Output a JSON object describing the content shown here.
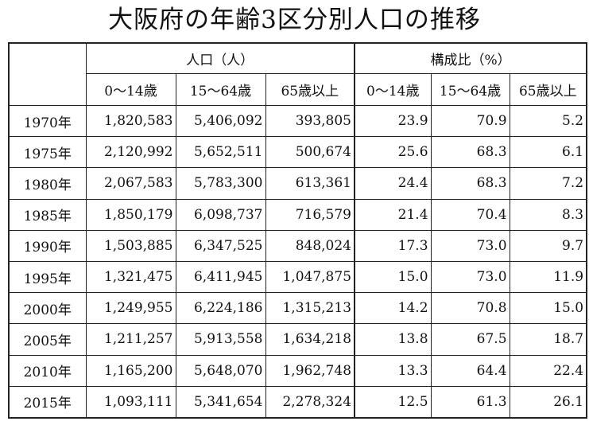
{
  "title": "大阪府の年齢3区分別人口の推移",
  "table": {
    "group_headers": [
      "人口（人）",
      "構成比（%）"
    ],
    "sub_headers": [
      "0〜14歳",
      "15〜64歳",
      "65歳以上",
      "0〜14歳",
      "15〜64歳",
      "65歳以上"
    ],
    "rows": [
      [
        "1970年",
        "1,820,583",
        "5,406,092",
        "393,805",
        "23.9",
        "70.9",
        "5.2"
      ],
      [
        "1975年",
        "2,120,992",
        "5,652,511",
        "500,674",
        "25.6",
        "68.3",
        "6.1"
      ],
      [
        "1980年",
        "2,067,583",
        "5,783,300",
        "613,361",
        "24.4",
        "68.3",
        "7.2"
      ],
      [
        "1985年",
        "1,850,179",
        "6,098,737",
        "716,579",
        "21.4",
        "70.4",
        "8.3"
      ],
      [
        "1990年",
        "1,503,885",
        "6,347,525",
        "848,024",
        "17.3",
        "73.0",
        "9.7"
      ],
      [
        "1995年",
        "1,321,475",
        "6,411,945",
        "1,047,875",
        "15.0",
        "73.0",
        "11.9"
      ],
      [
        "2000年",
        "1,249,955",
        "6,224,186",
        "1,315,213",
        "14.2",
        "70.8",
        "15.0"
      ],
      [
        "2005年",
        "1,211,257",
        "5,913,558",
        "1,634,218",
        "13.8",
        "67.5",
        "18.7"
      ],
      [
        "2010年",
        "1,165,200",
        "5,648,070",
        "1,962,748",
        "13.3",
        "64.4",
        "22.4"
      ],
      [
        "2015年",
        "1,093,111",
        "5,341,654",
        "2,278,324",
        "12.5",
        "61.3",
        "26.1"
      ]
    ]
  }
}
